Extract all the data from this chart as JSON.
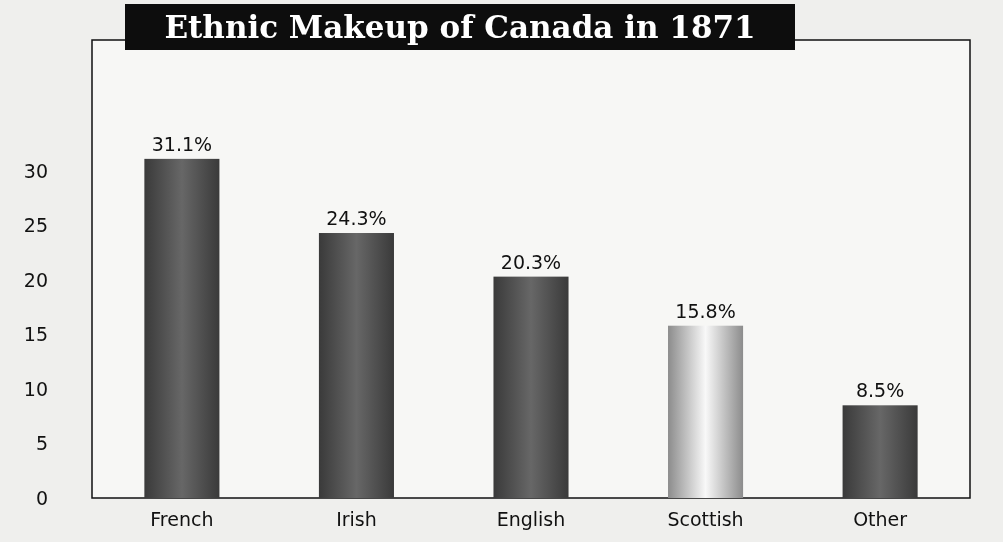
{
  "chart_data": {
    "type": "bar",
    "title": "Ethnic Makeup of Canada in 1871",
    "categories": [
      "French",
      "Irish",
      "English",
      "Scottish",
      "Other"
    ],
    "values": [
      31.1,
      24.3,
      20.3,
      15.8,
      8.5
    ],
    "colors": [
      "#3a3a3a",
      "#3a3a3a",
      "#3a3a3a",
      "#8c8c8c",
      "#3a3a3a"
    ],
    "value_labels": [
      "31.1%",
      "24.3%",
      "20.3%",
      "15.8%",
      "8.5%"
    ],
    "ylim": [
      0,
      42
    ],
    "yticks": [
      0,
      5,
      10,
      15,
      20,
      25,
      30
    ],
    "grid": false
  }
}
